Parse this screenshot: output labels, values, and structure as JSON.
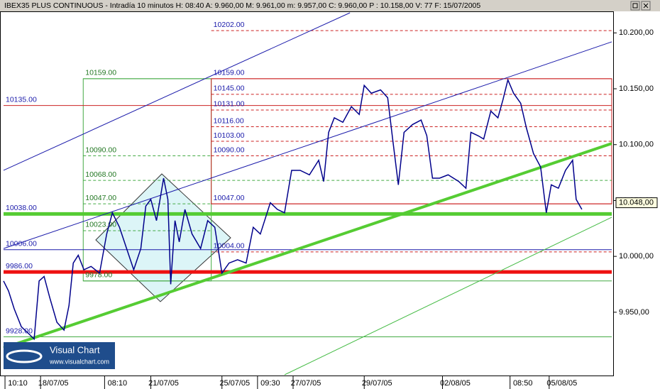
{
  "chart_data": {
    "type": "line",
    "title": "IBEX35 PLUS CONTINUOUS - Intradía 10 minutos H: 08:40  A: 9.960,00  M: 9.961,00  m: 9.957,00  C: 9.960,00  P : 10.158,00  V: 77  F: 15/07/2005",
    "x": [
      0,
      1.4,
      3,
      5,
      7,
      8.6,
      10,
      11.4,
      13,
      15,
      17,
      18.4,
      19.6,
      21,
      22.6,
      24.6,
      27,
      29,
      30.6,
      32.6,
      34.6,
      36.6,
      38.6,
      40,
      41.4,
      43,
      45,
      46.2,
      47,
      48.2,
      49.4,
      51,
      53,
      55.4,
      57.4,
      59.4,
      61.4,
      63.4,
      65.8,
      68.2,
      70.2,
      72.2,
      75,
      77,
      79,
      81,
      83.4,
      86,
      88.6,
      90,
      91.4,
      93,
      95.4,
      97.8,
      100,
      101.4,
      103.4,
      106,
      108,
      109.4,
      111,
      112.6,
      115,
      117.4,
      119,
      120.6,
      122.6,
      125,
      128,
      130,
      131.4,
      133.4,
      135,
      137,
      139,
      140.4,
      141.8,
      143.4,
      145.4,
      147,
      149,
      151,
      152.6,
      154,
      156,
      158,
      160,
      161,
      162.6
    ],
    "series": [
      {
        "color": "#00008b",
        "values": [
          9978,
          9969,
          9953,
          9937,
          9931,
          9926,
          9978,
          9982,
          9963,
          9941,
          9934,
          9956,
          9994,
          10001,
          9988,
          9991,
          9985,
          10020,
          10039,
          10026,
          10007,
          9988,
          10007,
          10045,
          10051,
          10032,
          10070,
          10051,
          9975,
          10032,
          10013,
          10042,
          10020,
          10007,
          10032,
          10026,
          9985,
          9994,
          9997,
          9994,
          10026,
          10020,
          10048,
          10042,
          10039,
          10077,
          10077,
          10073,
          10086,
          10067,
          10111,
          10124,
          10120,
          10134,
          10127,
          10153,
          10146,
          10149,
          10142,
          10105,
          10064,
          10111,
          10118,
          10122,
          10108,
          10070,
          10070,
          10073,
          10067,
          10061,
          10111,
          10108,
          10105,
          10130,
          10124,
          10140,
          10158,
          10146,
          10137,
          10115,
          10092,
          10080,
          10039,
          10064,
          10061,
          10077,
          10086,
          10051,
          10042
        ]
      }
    ],
    "xlim": [
      0,
      171
    ],
    "xticks": [
      {
        "value": 4,
        "label": "10:10"
      },
      {
        "value": 14,
        "label": "18/07/05"
      },
      {
        "value": 32,
        "label": "08:10"
      },
      {
        "value": 45,
        "label": "21/07/05"
      },
      {
        "value": 65,
        "label": "25/07/05"
      },
      {
        "value": 75,
        "label": "09:30"
      },
      {
        "value": 85,
        "label": "27/07/05"
      },
      {
        "value": 105,
        "label": "29/07/05"
      },
      {
        "value": 127,
        "label": "02/08/05"
      },
      {
        "value": 146,
        "label": "08:50"
      },
      {
        "value": 157,
        "label": "05/08/05"
      }
    ],
    "ylim": [
      9894,
      10218
    ],
    "yticks": [
      {
        "value": 9950,
        "label": "9.950,00"
      },
      {
        "value": 10000,
        "label": "10.000,00"
      },
      {
        "value": 10050,
        "label": "10.050,00"
      },
      {
        "value": 10100,
        "label": "10.100,00"
      },
      {
        "value": 10150,
        "label": "10.150,00"
      },
      {
        "value": 10200,
        "label": "10.200,00"
      }
    ],
    "last_price": {
      "value": 10048,
      "label": "10.048,00"
    },
    "boxes": [
      {
        "x": [
          22.4,
          58.4
        ],
        "y": [
          9978,
          10159
        ],
        "color": "#44aa44"
      },
      {
        "x": [
          58.4,
          171
        ],
        "y": [
          10047,
          10159
        ],
        "color": "#cc2222"
      }
    ],
    "trendlines": [
      {
        "x": [
          0,
          171
        ],
        "y": [
          9918,
          10101
        ],
        "color": "#55cc33",
        "width": 4
      },
      {
        "x": [
          79,
          171
        ],
        "y": [
          9894,
          10035
        ],
        "color": "#44bb44",
        "width": 1
      },
      {
        "x": [
          0,
          141.6
        ],
        "y": [
          10007,
          10160
        ],
        "color": "#1a1aaa",
        "width": 1
      },
      {
        "x": [
          0,
          97.4
        ],
        "y": [
          10077,
          10218
        ],
        "color": "#1a1aaa",
        "width": 1
      },
      {
        "x": [
          141.6,
          171
        ],
        "y": [
          10160,
          10192
        ],
        "color": "#1a1aaa",
        "width": 1
      }
    ],
    "levels": [
      {
        "value": 10202,
        "label": "10202.00",
        "color": "#cc2222",
        "width": 1,
        "dash": true,
        "span": [
          58.4,
          171
        ],
        "label_color": "#1a1aaa"
      },
      {
        "value": 10159,
        "label": "10159.00",
        "color": "#44aa44",
        "width": 1,
        "dash": false,
        "span": [
          22.4,
          58.4
        ],
        "label_color": "#227722"
      },
      {
        "value": 10159,
        "label": "10159.00",
        "color": "#cc2222",
        "width": 1,
        "dash": false,
        "span": [
          58.4,
          171
        ],
        "label_color": "#1a1aaa"
      },
      {
        "value": 10145,
        "label": "10145.00",
        "color": "#cc2222",
        "width": 1,
        "dash": true,
        "span": [
          58.4,
          171
        ],
        "label_color": "#1a1aaa"
      },
      {
        "value": 10135,
        "label": "10135.00",
        "color": "#cc2222",
        "width": 1,
        "dash": false,
        "span": [
          0,
          171
        ],
        "label_color": "#1a1aaa"
      },
      {
        "value": 10131,
        "label": "10131.00",
        "color": "#cc2222",
        "width": 1,
        "dash": true,
        "span": [
          58.4,
          171
        ],
        "label_color": "#1a1aaa"
      },
      {
        "value": 10116,
        "label": "10116.00",
        "color": "#cc2222",
        "width": 1,
        "dash": true,
        "span": [
          58.4,
          171
        ],
        "label_color": "#1a1aaa"
      },
      {
        "value": 10103,
        "label": "10103.00",
        "color": "#cc2222",
        "width": 1,
        "dash": true,
        "span": [
          58.4,
          171
        ],
        "label_color": "#1a1aaa"
      },
      {
        "value": 10090,
        "label": "10090.00",
        "color": "#44aa44",
        "width": 1,
        "dash": true,
        "span": [
          22.4,
          58.4
        ],
        "label_color": "#227722"
      },
      {
        "value": 10090,
        "label": "10090.00",
        "color": "#cc2222",
        "width": 1,
        "dash": true,
        "span": [
          58.4,
          171
        ],
        "label_color": "#1a1aaa"
      },
      {
        "value": 10068,
        "label": "10068.00",
        "color": "#44aa44",
        "width": 1,
        "dash": true,
        "span": [
          22.4,
          171
        ],
        "label_color": "#227722"
      },
      {
        "value": 10047,
        "label": "10047.00",
        "color": "#44aa44",
        "width": 1,
        "dash": true,
        "span": [
          22.4,
          58.4
        ],
        "label_color": "#227722"
      },
      {
        "value": 10047,
        "label": "10047.00",
        "color": "#cc2222",
        "width": 1,
        "dash": false,
        "span": [
          58.4,
          171
        ],
        "label_color": "#1a1aaa"
      },
      {
        "value": 10038,
        "label": "10038.00",
        "color": "#55cc33",
        "width": 5,
        "dash": false,
        "span": [
          0,
          171
        ],
        "label_color": "#1a1aaa"
      },
      {
        "value": 10023,
        "label": "10023.00",
        "color": "#44aa44",
        "width": 1,
        "dash": true,
        "span": [
          22.4,
          58.4
        ],
        "label_color": "#227722"
      },
      {
        "value": 10006,
        "label": "10006.00",
        "color": "#1a1aaa",
        "width": 1,
        "dash": false,
        "span": [
          0,
          171
        ],
        "label_color": "#1a1aaa"
      },
      {
        "value": 10004,
        "label": "10004.00",
        "color": "#cc2222",
        "width": 1,
        "dash": true,
        "span": [
          58.4,
          171
        ],
        "label_color": "#1a1aaa"
      },
      {
        "value": 9986,
        "label": "9986.00",
        "color": "#ee1111",
        "width": 5,
        "dash": false,
        "span": [
          0,
          171
        ],
        "label_color": "#1a1aaa"
      },
      {
        "value": 9978,
        "label": "9978.00",
        "color": "#44aa44",
        "width": 1,
        "dash": false,
        "span": [
          22.4,
          171
        ],
        "label_color": "#227722"
      },
      {
        "value": 9928,
        "label": "9928.00",
        "color": "#44aa44",
        "width": 1,
        "dash": false,
        "span": [
          0,
          171
        ],
        "label_color": "#1a1aaa"
      }
    ]
  },
  "logo": {
    "name": "Visual Chart",
    "url": "www.visualchart.com"
  }
}
